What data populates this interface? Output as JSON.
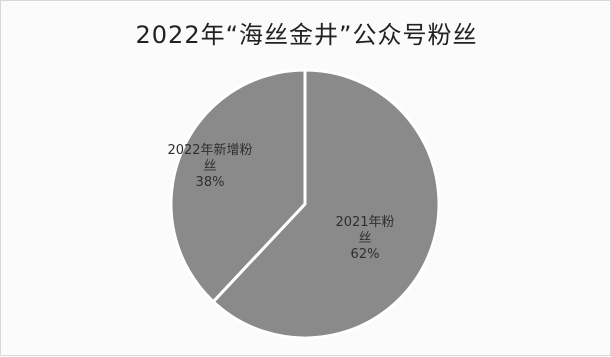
{
  "chart_data": {
    "type": "pie",
    "title": "2022年“海丝金井”公众号粉丝",
    "slices": [
      {
        "label": "2022年新增粉丝",
        "value": 38,
        "value_label": "38%",
        "color": "#8a8a8a"
      },
      {
        "label": "2021年粉丝",
        "value": 62,
        "value_label": "62%",
        "color": "#8a8a8a"
      }
    ],
    "separator_color": "#ffffff",
    "legend": "none"
  }
}
